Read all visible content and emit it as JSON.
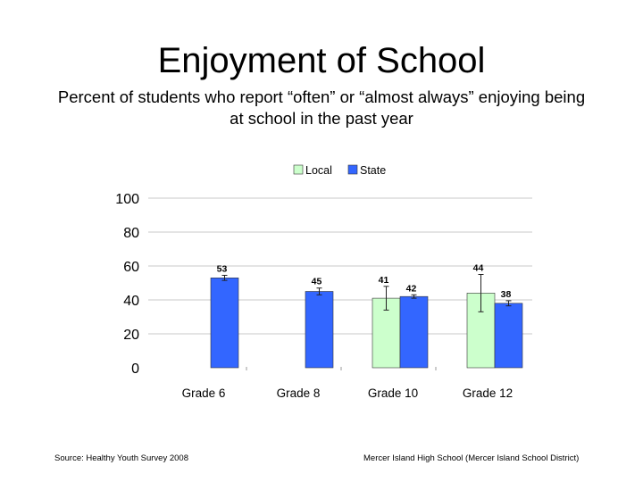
{
  "title": "Enjoyment of School",
  "subtitle": "Percent of students who report “often” or “almost always” enjoying being at school in the past year",
  "footer": {
    "source": "Source: Healthy Youth Survey 2008",
    "credit": "Mercer Island High School (Mercer Island School District)"
  },
  "chart_data": {
    "type": "bar",
    "categories": [
      "Grade 6",
      "Grade 8",
      "Grade 10",
      "Grade 12"
    ],
    "series": [
      {
        "name": "Local",
        "color": "#ccffcc",
        "values": [
          null,
          null,
          41,
          44
        ],
        "error": [
          null,
          null,
          7,
          11
        ]
      },
      {
        "name": "State",
        "color": "#3366ff",
        "values": [
          53,
          45,
          42,
          38
        ],
        "error": [
          1.5,
          2,
          1,
          1.5
        ]
      }
    ],
    "ylim": [
      0,
      100
    ],
    "yticks": [
      0,
      20,
      40,
      60,
      80,
      100
    ],
    "grid": true,
    "legend": "top-center"
  }
}
